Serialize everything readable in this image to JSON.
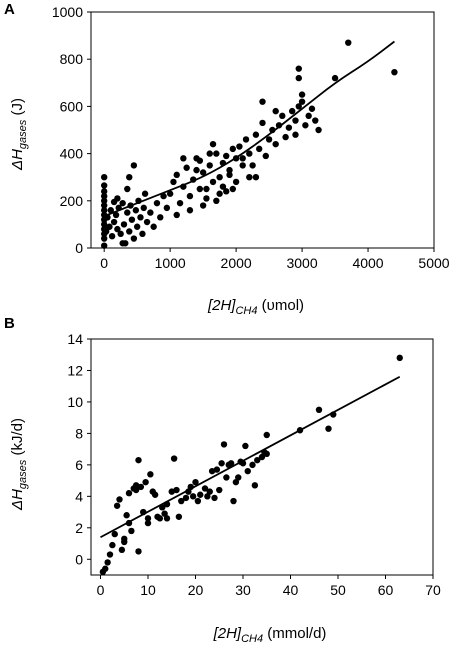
{
  "chart_data": [
    {
      "panel": "A",
      "type": "scatter",
      "x_label": {
        "main": "[2H]",
        "sub": "CH4",
        "unit": " (υmol)"
      },
      "y_label": {
        "main": "ΔH",
        "sub": "gases",
        "unit": " (J)"
      },
      "xlim": [
        -200,
        5000
      ],
      "ylim": [
        0,
        1000
      ],
      "x_ticks": [
        0,
        1000,
        2000,
        3000,
        4000,
        5000
      ],
      "y_ticks": [
        0,
        200,
        400,
        600,
        800,
        1000
      ],
      "trendline": {
        "type": "curve",
        "points": [
          [
            0,
            135
          ],
          [
            500,
            190
          ],
          [
            1000,
            245
          ],
          [
            1500,
            300
          ],
          [
            2000,
            380
          ],
          [
            2500,
            480
          ],
          [
            3000,
            590
          ],
          [
            3500,
            700
          ],
          [
            4000,
            790
          ],
          [
            4400,
            875
          ]
        ]
      },
      "series": [
        {
          "points": [
            [
              0,
              10
            ],
            [
              0,
              40
            ],
            [
              0,
              60
            ],
            [
              0,
              80
            ],
            [
              0,
              100
            ],
            [
              0,
              120
            ],
            [
              0,
              140
            ],
            [
              0,
              160
            ],
            [
              0,
              180
            ],
            [
              0,
              200
            ],
            [
              0,
              220
            ],
            [
              0,
              240
            ],
            [
              0,
              265
            ],
            [
              0,
              300
            ],
            [
              30,
              70
            ],
            [
              50,
              130
            ],
            [
              80,
              90
            ],
            [
              100,
              160
            ],
            [
              120,
              50
            ],
            [
              150,
              110
            ],
            [
              180,
              140
            ],
            [
              200,
              80
            ],
            [
              220,
              170
            ],
            [
              250,
              60
            ],
            [
              280,
              190
            ],
            [
              300,
              100
            ],
            [
              320,
              20
            ],
            [
              350,
              150
            ],
            [
              380,
              70
            ],
            [
              400,
              180
            ],
            [
              420,
              120
            ],
            [
              450,
              40
            ],
            [
              480,
              160
            ],
            [
              500,
              90
            ],
            [
              520,
              200
            ],
            [
              550,
              130
            ],
            [
              580,
              60
            ],
            [
              600,
              170
            ],
            [
              620,
              230
            ],
            [
              650,
              110
            ],
            [
              700,
              150
            ],
            [
              750,
              90
            ],
            [
              800,
              190
            ],
            [
              850,
              130
            ],
            [
              900,
              220
            ],
            [
              950,
              170
            ],
            [
              200,
              210
            ],
            [
              280,
              20
            ],
            [
              380,
              300
            ],
            [
              450,
              350
            ],
            [
              350,
              250
            ],
            [
              150,
              195
            ],
            [
              1000,
              230
            ],
            [
              1050,
              280
            ],
            [
              1100,
              310
            ],
            [
              1150,
              190
            ],
            [
              1200,
              260
            ],
            [
              1250,
              340
            ],
            [
              1300,
              220
            ],
            [
              1350,
              290
            ],
            [
              1400,
              380
            ],
            [
              1450,
              250
            ],
            [
              1500,
              320
            ],
            [
              1550,
              210
            ],
            [
              1600,
              350
            ],
            [
              1650,
              280
            ],
            [
              1700,
              400
            ],
            [
              1750,
              300
            ],
            [
              1800,
              360
            ],
            [
              1850,
              240
            ],
            [
              1900,
              330
            ],
            [
              1950,
              420
            ],
            [
              2000,
              280
            ],
            [
              1100,
              140
            ],
            [
              1200,
              380
            ],
            [
              1300,
              160
            ],
            [
              1400,
              330
            ],
            [
              1500,
              180
            ],
            [
              1600,
              400
            ],
            [
              1700,
              200
            ],
            [
              1800,
              260
            ],
            [
              1900,
              310
            ],
            [
              2000,
              380
            ],
            [
              1650,
              440
            ],
            [
              1550,
              250
            ],
            [
              1450,
              370
            ],
            [
              1750,
              230
            ],
            [
              1850,
              390
            ],
            [
              2050,
              430
            ],
            [
              2100,
              380
            ],
            [
              2150,
              460
            ],
            [
              2200,
              400
            ],
            [
              2250,
              350
            ],
            [
              2300,
              480
            ],
            [
              2350,
              420
            ],
            [
              2400,
              530
            ],
            [
              2450,
              390
            ],
            [
              2500,
              460
            ],
            [
              2550,
              500
            ],
            [
              2600,
              440
            ],
            [
              2650,
              520
            ],
            [
              2700,
              560
            ],
            [
              2750,
              470
            ],
            [
              2800,
              510
            ],
            [
              2850,
              580
            ],
            [
              2900,
              540
            ],
            [
              2950,
              600
            ],
            [
              3000,
              620
            ],
            [
              3050,
              520
            ],
            [
              3100,
              560
            ],
            [
              3150,
              590
            ],
            [
              3200,
              540
            ],
            [
              3250,
              500
            ],
            [
              2400,
              620
            ],
            [
              2600,
              580
            ],
            [
              2900,
              480
            ],
            [
              2950,
              760
            ],
            [
              2950,
              720
            ],
            [
              3000,
              650
            ],
            [
              3500,
              720
            ],
            [
              3700,
              870
            ],
            [
              4400,
              745
            ],
            [
              2200,
              300
            ],
            [
              2300,
              300
            ],
            [
              2100,
              350
            ],
            [
              1950,
              250
            ]
          ]
        }
      ]
    },
    {
      "panel": "B",
      "type": "scatter",
      "x_label": {
        "main": "[2H]",
        "sub": "CH4",
        "unit": " (mmol/d)"
      },
      "y_label": {
        "main": "ΔH",
        "sub": "gases",
        "unit": " (kJ/d)"
      },
      "xlim": [
        -2,
        70
      ],
      "ylim": [
        -1,
        14
      ],
      "x_ticks": [
        0,
        10,
        20,
        30,
        40,
        50,
        60,
        70
      ],
      "y_ticks": [
        0,
        2,
        4,
        6,
        8,
        10,
        12,
        14
      ],
      "trendline": {
        "type": "line",
        "points": [
          [
            0,
            1.4
          ],
          [
            63,
            11.6
          ]
        ]
      },
      "series": [
        {
          "points": [
            [
              0.5,
              -0.8
            ],
            [
              1,
              -0.6
            ],
            [
              1.5,
              -0.2
            ],
            [
              2,
              0.3
            ],
            [
              2.5,
              0.9
            ],
            [
              3,
              1.6
            ],
            [
              3.5,
              3.4
            ],
            [
              4,
              3.8
            ],
            [
              4.5,
              0.6
            ],
            [
              5,
              1.3
            ],
            [
              5,
              1.1
            ],
            [
              5.5,
              2.8
            ],
            [
              6,
              2.3
            ],
            [
              6,
              4.2
            ],
            [
              6.5,
              1.8
            ],
            [
              7,
              4.5
            ],
            [
              7.5,
              4.7
            ],
            [
              7.5,
              4.4
            ],
            [
              8,
              0.5
            ],
            [
              8,
              6.3
            ],
            [
              8.5,
              4.6
            ],
            [
              9,
              3.0
            ],
            [
              9.5,
              4.9
            ],
            [
              10,
              2.6
            ],
            [
              10,
              2.3
            ],
            [
              10.5,
              5.4
            ],
            [
              11,
              4.3
            ],
            [
              11.5,
              4.1
            ],
            [
              12,
              2.7
            ],
            [
              12.5,
              2.6
            ],
            [
              13,
              3.3
            ],
            [
              13.5,
              2.9
            ],
            [
              14,
              3.5
            ],
            [
              14,
              2.6
            ],
            [
              15,
              4.3
            ],
            [
              15.5,
              6.4
            ],
            [
              16,
              4.4
            ],
            [
              16.5,
              2.7
            ],
            [
              17,
              3.7
            ],
            [
              18,
              3.9
            ],
            [
              18.5,
              4.3
            ],
            [
              19,
              4.6
            ],
            [
              19.5,
              4.0
            ],
            [
              20,
              4.9
            ],
            [
              20.5,
              3.7
            ],
            [
              21,
              4.1
            ],
            [
              22,
              4.5
            ],
            [
              22.5,
              4.0
            ],
            [
              23,
              4.3
            ],
            [
              23.5,
              5.6
            ],
            [
              24,
              3.9
            ],
            [
              24.5,
              5.7
            ],
            [
              25,
              4.4
            ],
            [
              25.5,
              6.1
            ],
            [
              26,
              7.3
            ],
            [
              26.5,
              5.2
            ],
            [
              27,
              6.0
            ],
            [
              27.5,
              6.1
            ],
            [
              28,
              3.7
            ],
            [
              28.5,
              4.9
            ],
            [
              29,
              5.2
            ],
            [
              29.5,
              6.2
            ],
            [
              30,
              6.1
            ],
            [
              30.5,
              7.2
            ],
            [
              31,
              5.6
            ],
            [
              32,
              6.0
            ],
            [
              32.5,
              4.7
            ],
            [
              33,
              6.3
            ],
            [
              34,
              6.5
            ],
            [
              34.5,
              6.8
            ],
            [
              35,
              7.9
            ],
            [
              35,
              6.7
            ],
            [
              42,
              8.2
            ],
            [
              46,
              9.5
            ],
            [
              48,
              8.3
            ],
            [
              49,
              9.2
            ],
            [
              63,
              12.8
            ]
          ]
        }
      ]
    }
  ]
}
